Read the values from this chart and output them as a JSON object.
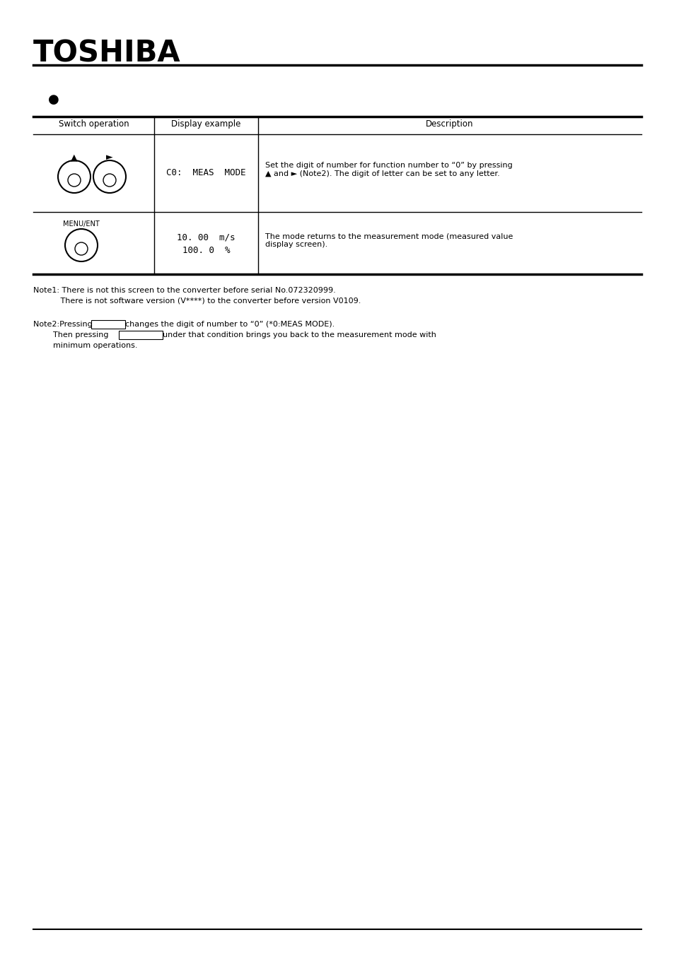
{
  "title": "TOSHIBA",
  "background_color": "#ffffff",
  "text_color": "#000000",
  "bullet_text": "●",
  "table_headers": [
    "Switch operation",
    "Display example",
    "Description"
  ],
  "row1_display": "C0:  MEAS  MODE",
  "row1_desc_line1": "Set the digit of number for function number to “0” by pressing",
  "row1_desc_line2": "▲ and ► (Note2). The digit of letter can be set to any letter.",
  "row2_display_line1": "10. 00  m/s",
  "row2_display_line2": "100. 0  %",
  "row2_desc": "The mode returns to the measurement mode (measured value\ndisplay screen).",
  "note1_line1": "Note1: There is not this screen to the converter before serial No.072320999.",
  "note1_line2": "           There is not software version (V****) to the converter before version V0109.",
  "note2_line1_pre": "Note2:Pressing ",
  "note2_line1_post": "changes the digit of number to “0” (*0:MEAS MODE).",
  "note2_line2_pre": "        Then pressing ",
  "note2_line2_post": "under that condition brings you back to the measurement mode with",
  "note2_line3": "        minimum operations."
}
